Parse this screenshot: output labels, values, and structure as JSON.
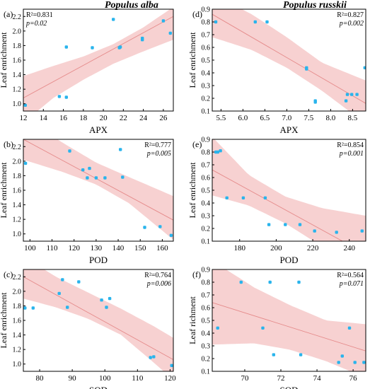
{
  "column_titles": [
    "Populus alba",
    "Populus russkii"
  ],
  "styles": {
    "band_color": "#f6c9c9",
    "line_color": "#e58a8a",
    "point_color": "#29b4ec",
    "axis_color": "#000000"
  },
  "chart_data": [
    {
      "type": "scatter",
      "panel": "(a)",
      "xlabel": "APX",
      "ylabel": "Leaf enrichment",
      "xlim": [
        12,
        27
      ],
      "ylim": [
        0.9,
        2.3
      ],
      "xticks": [
        12,
        14,
        16,
        18,
        20,
        22,
        24,
        26
      ],
      "xtick_labels": [
        "12",
        "14",
        "16",
        "18",
        "20",
        "22",
        "24",
        "26"
      ],
      "yticks": [
        1.0,
        1.2,
        1.4,
        1.6,
        1.8,
        2.0,
        2.2
      ],
      "ytick_labels": [
        "1.0",
        "1.2",
        "1.4",
        "1.6",
        "1.8",
        "2.0",
        "2.2"
      ],
      "stats": [
        "R²=0.831",
        "p=0.02"
      ],
      "stats_position": "top-left",
      "points": [
        [
          12.2,
          0.98
        ],
        [
          15.6,
          1.1
        ],
        [
          16.3,
          1.09
        ],
        [
          16.3,
          1.78
        ],
        [
          18.9,
          1.77
        ],
        [
          21.0,
          2.16
        ],
        [
          21.6,
          1.77
        ],
        [
          21.7,
          1.78
        ],
        [
          23.9,
          1.88
        ],
        [
          23.9,
          1.9
        ],
        [
          26.0,
          2.14
        ],
        [
          26.7,
          1.97
        ]
      ],
      "fit_line": [
        [
          12,
          1.08
        ],
        [
          27,
          2.2
        ]
      ],
      "band_upper": [
        [
          12,
          1.38
        ],
        [
          15,
          1.52
        ],
        [
          18,
          1.65
        ],
        [
          21,
          1.82
        ],
        [
          24,
          2.05
        ],
        [
          27,
          2.33
        ]
      ],
      "band_lower": [
        [
          12,
          0.74
        ],
        [
          15,
          1.08
        ],
        [
          18,
          1.33
        ],
        [
          21,
          1.55
        ],
        [
          24,
          1.72
        ],
        [
          27,
          1.88
        ]
      ]
    },
    {
      "type": "scatter",
      "panel": "(b)",
      "xlabel": "POD",
      "ylabel": "Leaf enrichment",
      "xlim": [
        97,
        165
      ],
      "ylim": [
        0.9,
        2.3
      ],
      "xticks": [
        100,
        110,
        120,
        130,
        140,
        150,
        160
      ],
      "xtick_labels": [
        "100",
        "110",
        "120",
        "130",
        "140",
        "150",
        "160"
      ],
      "yticks": [
        1.0,
        1.2,
        1.4,
        1.6,
        1.8,
        2.0,
        2.2
      ],
      "ytick_labels": [
        "1.0",
        "1.2",
        "1.4",
        "1.6",
        "1.8",
        "2.0",
        "2.2"
      ],
      "stats": [
        "R²=0.777",
        "p=0.005"
      ],
      "stats_position": "top-right",
      "points": [
        [
          98,
          1.97
        ],
        [
          118,
          2.14
        ],
        [
          124,
          1.88
        ],
        [
          126,
          1.77
        ],
        [
          127,
          1.9
        ],
        [
          130,
          1.77
        ],
        [
          134,
          1.77
        ],
        [
          141,
          2.16
        ],
        [
          142,
          1.78
        ],
        [
          152,
          1.09
        ],
        [
          159,
          1.1
        ],
        [
          164,
          0.98
        ]
      ],
      "fit_line": [
        [
          97,
          2.3
        ],
        [
          165,
          1.19
        ]
      ],
      "band_upper": [
        [
          97,
          2.6
        ],
        [
          115,
          2.25
        ],
        [
          130,
          1.98
        ],
        [
          145,
          1.78
        ],
        [
          165,
          1.52
        ]
      ],
      "band_lower": [
        [
          97,
          2.02
        ],
        [
          115,
          1.85
        ],
        [
          130,
          1.68
        ],
        [
          145,
          1.42
        ],
        [
          165,
          0.92
        ]
      ]
    },
    {
      "type": "scatter",
      "panel": "(c)",
      "xlabel": "SOD",
      "ylabel": "Leaf enrichment",
      "xlim": [
        75,
        121
      ],
      "ylim": [
        0.9,
        2.3
      ],
      "xticks": [
        80,
        90,
        100,
        110,
        120
      ],
      "xtick_labels": [
        "80",
        "90",
        "100",
        "110",
        "120"
      ],
      "yticks": [
        1.0,
        1.2,
        1.4,
        1.6,
        1.8,
        2.0,
        2.2
      ],
      "ytick_labels": [
        "1.0",
        "1.2",
        "1.4",
        "1.6",
        "1.8",
        "2.0",
        "2.2"
      ],
      "stats": [
        "R²=0.764",
        "p=0.006"
      ],
      "stats_position": "top-right",
      "points": [
        [
          75.5,
          1.77
        ],
        [
          78,
          1.77
        ],
        [
          86,
          1.97
        ],
        [
          87,
          2.16
        ],
        [
          88.5,
          1.78
        ],
        [
          92,
          2.13
        ],
        [
          99,
          1.88
        ],
        [
          100.5,
          1.78
        ],
        [
          101.5,
          1.9
        ],
        [
          114,
          1.09
        ],
        [
          115,
          1.1
        ],
        [
          120.5,
          0.98
        ]
      ],
      "fit_line": [
        [
          75,
          2.2
        ],
        [
          121,
          1.06
        ]
      ],
      "band_upper": [
        [
          75,
          2.48
        ],
        [
          85,
          2.2
        ],
        [
          95,
          1.98
        ],
        [
          105,
          1.76
        ],
        [
          115,
          1.52
        ],
        [
          121,
          1.36
        ]
      ],
      "band_lower": [
        [
          75,
          1.9
        ],
        [
          85,
          1.78
        ],
        [
          95,
          1.62
        ],
        [
          105,
          1.4
        ],
        [
          115,
          1.02
        ],
        [
          121,
          0.78
        ]
      ]
    },
    {
      "type": "scatter",
      "panel": "(d)",
      "xlabel": "APX",
      "ylabel": "Leaf enrichment",
      "xlim": [
        5.3,
        8.8
      ],
      "ylim": [
        0.1,
        0.9
      ],
      "xticks": [
        5.5,
        6.0,
        6.5,
        7.0,
        7.5,
        8.0,
        8.5
      ],
      "xtick_labels": [
        "5.5",
        "6.0",
        "6.5",
        "7.0",
        "7.5",
        "8.0",
        "8.5"
      ],
      "yticks": [
        0.1,
        0.2,
        0.3,
        0.4,
        0.5,
        0.6,
        0.7,
        0.8,
        0.9
      ],
      "ytick_labels": [
        "0.1",
        "0.2",
        "0.3",
        "0.4",
        "0.5",
        "0.6",
        "0.7",
        "0.8",
        "0.9"
      ],
      "stats": [
        "R²=0.827",
        "p=0.002"
      ],
      "stats_position": "top-right",
      "points": [
        [
          5.38,
          0.8
        ],
        [
          6.28,
          0.8
        ],
        [
          6.55,
          0.8
        ],
        [
          7.45,
          0.44
        ],
        [
          7.45,
          0.43
        ],
        [
          7.65,
          0.18
        ],
        [
          7.65,
          0.17
        ],
        [
          8.35,
          0.18
        ],
        [
          8.38,
          0.23
        ],
        [
          8.48,
          0.23
        ],
        [
          8.6,
          0.23
        ],
        [
          8.78,
          0.44
        ]
      ],
      "fit_line": [
        [
          5.3,
          0.86
        ],
        [
          8.8,
          0.16
        ]
      ],
      "band_upper": [
        [
          5.3,
          1.02
        ],
        [
          6.2,
          0.86
        ],
        [
          7.0,
          0.68
        ],
        [
          7.8,
          0.48
        ],
        [
          8.8,
          0.34
        ]
      ],
      "band_lower": [
        [
          5.3,
          0.68
        ],
        [
          6.2,
          0.58
        ],
        [
          7.0,
          0.44
        ],
        [
          7.8,
          0.26
        ],
        [
          8.8,
          0.0
        ]
      ]
    },
    {
      "type": "scatter",
      "panel": "(e)",
      "xlabel": "POD",
      "ylabel": "Leaf enrichment",
      "xlim": [
        165,
        249
      ],
      "ylim": [
        0.1,
        0.9
      ],
      "xticks": [
        180,
        200,
        220,
        240
      ],
      "xtick_labels": [
        "180",
        "200",
        "220",
        "240"
      ],
      "yticks": [
        0.1,
        0.2,
        0.3,
        0.4,
        0.5,
        0.6,
        0.7,
        0.8,
        0.9
      ],
      "ytick_labels": [
        "0.1",
        "0.2",
        "0.3",
        "0.4",
        "0.5",
        "0.6",
        "0.7",
        "0.8",
        "0.9"
      ],
      "stats": [
        "R²=0.854",
        "p=0.001"
      ],
      "stats_position": "top-right",
      "points": [
        [
          167,
          0.8
        ],
        [
          168,
          0.8
        ],
        [
          169.5,
          0.81
        ],
        [
          173,
          0.44
        ],
        [
          182,
          0.44
        ],
        [
          194,
          0.44
        ],
        [
          196,
          0.23
        ],
        [
          205,
          0.23
        ],
        [
          213,
          0.23
        ],
        [
          221,
          0.18
        ],
        [
          233,
          0.17
        ],
        [
          247,
          0.18
        ]
      ],
      "fit_line": [
        [
          165,
          0.66
        ],
        [
          249,
          0.0
        ]
      ],
      "band_upper": [
        [
          165,
          0.92
        ],
        [
          185,
          0.62
        ],
        [
          205,
          0.45
        ],
        [
          225,
          0.36
        ],
        [
          249,
          0.3
        ]
      ],
      "band_lower": [
        [
          165,
          0.46
        ],
        [
          185,
          0.38
        ],
        [
          205,
          0.24
        ],
        [
          225,
          0.06
        ],
        [
          249,
          -0.12
        ]
      ]
    },
    {
      "type": "scatter",
      "panel": "(f)",
      "xlabel": "SOD",
      "ylabel": "Leaf richment",
      "xlim": [
        68.2,
        76.7
      ],
      "ylim": [
        0.1,
        0.9
      ],
      "xticks": [
        70,
        72,
        74,
        76
      ],
      "xtick_labels": [
        "70",
        "72",
        "74",
        "76"
      ],
      "yticks": [
        0.1,
        0.2,
        0.3,
        0.4,
        0.5,
        0.6,
        0.7,
        0.8,
        0.9
      ],
      "ytick_labels": [
        "0.1",
        "0.2",
        "0.3",
        "0.4",
        "0.5",
        "0.6",
        "0.7",
        "0.8",
        "0.9"
      ],
      "stats": [
        "R²=0.564",
        "p=0.071"
      ],
      "stats_position": "top-right",
      "points": [
        [
          68.5,
          0.44
        ],
        [
          69.8,
          0.8
        ],
        [
          71.0,
          0.44
        ],
        [
          71.4,
          0.8
        ],
        [
          71.6,
          0.23
        ],
        [
          73.0,
          0.8
        ],
        [
          73.1,
          0.23
        ],
        [
          75.2,
          0.17
        ],
        [
          75.4,
          0.22
        ],
        [
          75.8,
          0.44
        ],
        [
          76.1,
          0.17
        ],
        [
          76.6,
          0.17
        ]
      ],
      "fit_line": [
        [
          68.2,
          0.64
        ],
        [
          76.7,
          0.26
        ]
      ],
      "band_upper": [
        [
          68.2,
          0.97
        ],
        [
          70.5,
          0.76
        ],
        [
          72.5,
          0.62
        ],
        [
          74.5,
          0.5
        ],
        [
          76.7,
          0.47
        ]
      ],
      "band_lower": [
        [
          68.2,
          0.31
        ],
        [
          70.5,
          0.32
        ],
        [
          72.5,
          0.27
        ],
        [
          74.5,
          0.18
        ],
        [
          76.7,
          0.05
        ]
      ]
    }
  ]
}
